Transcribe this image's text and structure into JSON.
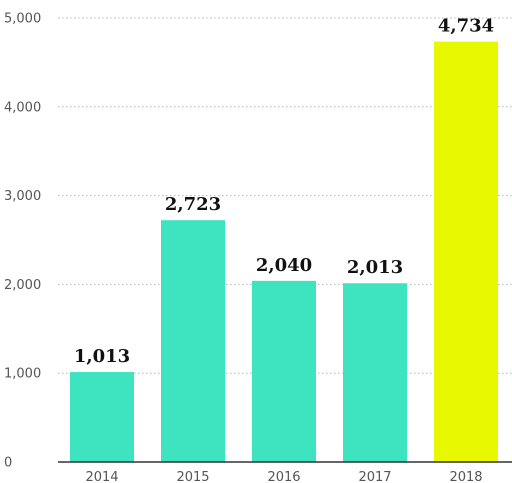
{
  "chart_data": {
    "type": "bar",
    "title": "",
    "xlabel": "",
    "ylabel": "",
    "categories": [
      "2014",
      "2015",
      "2016",
      "2017",
      "2018"
    ],
    "values": [
      1013,
      2723,
      2040,
      2013,
      4734
    ],
    "value_labels": [
      "1,013",
      "2,723",
      "2,040",
      "2,013",
      "4,734"
    ],
    "ylim": [
      0,
      5000
    ],
    "yticks": [
      0,
      1000,
      2000,
      3000,
      4000,
      5000
    ],
    "ytick_labels": [
      "0",
      "1,000",
      "2,000",
      "3,000",
      "4,000",
      "5,000"
    ],
    "grid": true,
    "legend": "none",
    "colors": {
      "bar": "#3ee3bf",
      "highlight_bar": "#e8f800",
      "highlight_category": "2018"
    }
  }
}
